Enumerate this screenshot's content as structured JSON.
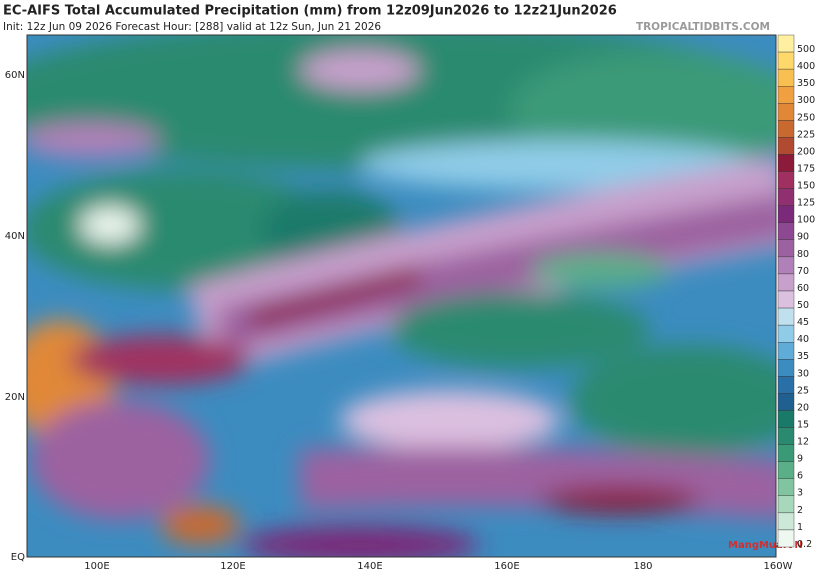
{
  "header": {
    "title": "EC-AIFS Total Accumulated Precipitation (mm) from 12z09Jun2026 to 12z21Jun2026",
    "subtitle": "Init: 12z Jun 09 2026   Forecast Hour: [288]   valid at 12z Sun, Jun 21 2026",
    "brand": "TROPICALTIDBITS.COM"
  },
  "watermark": "MangMua.VN",
  "lat_labels": [
    "60N",
    "40N",
    "20N",
    "EQ"
  ],
  "lon_labels": [
    "100E",
    "120E",
    "140E",
    "160E",
    "180",
    "160W"
  ],
  "colorbar": {
    "levels": [
      500,
      400,
      350,
      300,
      250,
      225,
      200,
      175,
      150,
      125,
      100,
      90,
      80,
      70,
      60,
      50,
      45,
      40,
      35,
      30,
      25,
      20,
      15,
      12,
      9,
      6,
      3,
      2,
      1,
      0.2
    ],
    "colors": [
      "#fef0a0",
      "#fdd86a",
      "#f8c050",
      "#f0a040",
      "#e08838",
      "#c86a30",
      "#b04a30",
      "#8c1a3a",
      "#a03060",
      "#903070",
      "#7a2a78",
      "#8c4890",
      "#9c62a0",
      "#b080b8",
      "#c8a0cc",
      "#dcc0e0",
      "#c0e0f0",
      "#90cce8",
      "#60acd8",
      "#3c8cc0",
      "#2a70a8",
      "#206090",
      "#1a7a6a",
      "#2a8a70",
      "#3a9a78",
      "#5aae88",
      "#80c4a0",
      "#a8d8bc",
      "#cce8d8",
      "#eef8f0"
    ]
  }
}
